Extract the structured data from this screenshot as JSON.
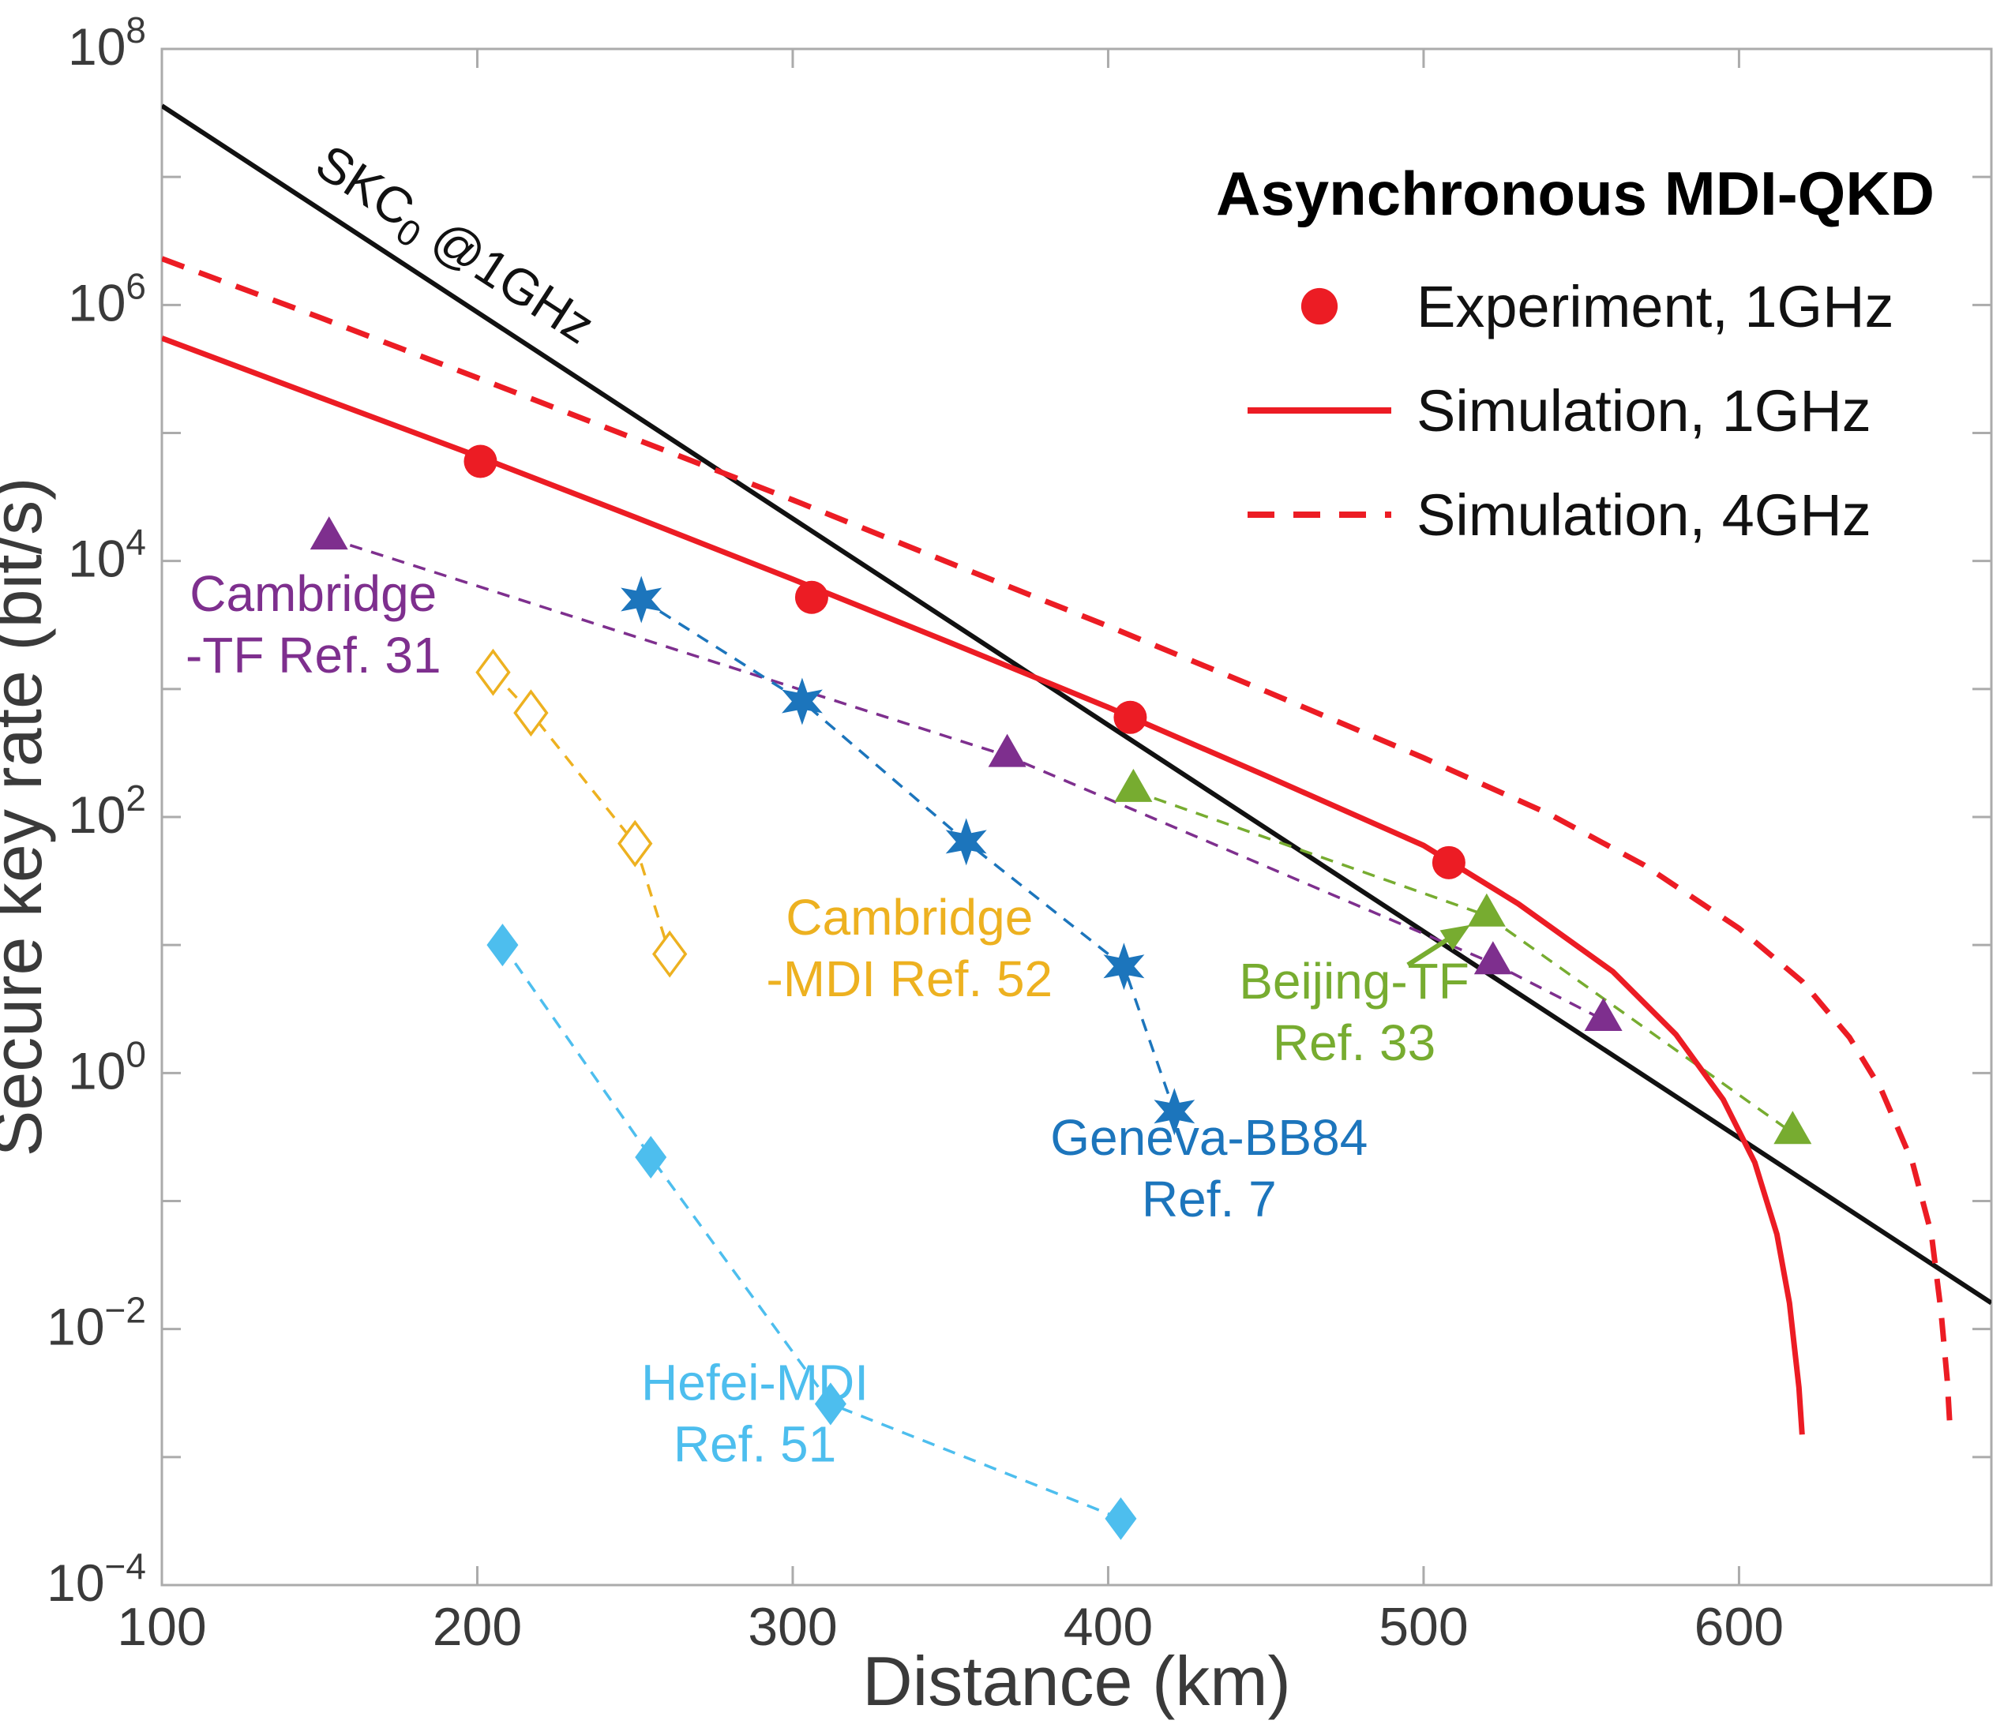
{
  "chart_data": {
    "type": "line",
    "title": "",
    "xlabel": "Distance (km)",
    "ylabel": "Secure key rate (bit/s)",
    "x_axis": {
      "scale": "linear",
      "min": 100,
      "max": 680,
      "ticks": [
        100,
        200,
        300,
        400,
        500,
        600
      ]
    },
    "y_axis": {
      "scale": "log",
      "min": 0.0001,
      "max": 100000000.0,
      "tick_exponents": [
        -4,
        -2,
        0,
        2,
        4,
        6,
        8
      ]
    },
    "grid": false,
    "legend": {
      "position": "top-right-inside",
      "title": "Asynchronous MDI-QKD",
      "items": [
        {
          "label": "Experiment, 1GHz",
          "type": "marker",
          "marker": "circle",
          "color": "#ec1c24"
        },
        {
          "label": "Simulation, 1GHz",
          "type": "line",
          "line": "solid",
          "color": "#ec1c24"
        },
        {
          "label": "Simulation, 4GHz",
          "type": "line",
          "line": "dashed",
          "color": "#ec1c24"
        }
      ]
    },
    "series": [
      {
        "id": "skc0",
        "name": "SKC0 @1GHz",
        "color": "#111111",
        "line": "solid",
        "line_width": 6,
        "marker": null,
        "points": [
          [
            100,
            36000000.0
          ],
          [
            680,
            0.016
          ]
        ]
      },
      {
        "id": "cambridge_tf",
        "name": "Cambridge-TF Ref. 31",
        "color": "#7E2F8E",
        "line": "dashed",
        "line_width": 3.5,
        "marker": "triangle",
        "points": [
          [
            153,
            15000.0
          ],
          [
            368,
            300.0
          ],
          [
            522,
            7.2
          ],
          [
            557,
            2.6
          ]
        ]
      },
      {
        "id": "cambridge_mdi",
        "name": "Cambridge-MDI Ref. 52",
        "color": "#EDB120",
        "line": "dashed",
        "line_width": 3.5,
        "marker": "diamond-open",
        "points": [
          [
            205,
            1350.0
          ],
          [
            217,
            650.0
          ],
          [
            250,
            62.0
          ],
          [
            261,
            8.5
          ]
        ]
      },
      {
        "id": "geneva_bb84",
        "name": "Geneva-BB84 Ref. 7",
        "color": "#1C75BC",
        "line": "dashed",
        "line_width": 3.5,
        "marker": "hexagram",
        "points": [
          [
            252,
            5000.0
          ],
          [
            303,
            800.0
          ],
          [
            355,
            64.0
          ],
          [
            405,
            6.8
          ],
          [
            421,
            0.5
          ]
        ]
      },
      {
        "id": "hefei_mdi",
        "name": "Hefei-MDI Ref. 51",
        "color": "#4DBEEE",
        "line": "dashed",
        "line_width": 3.5,
        "marker": "diamond",
        "points": [
          [
            208,
            10.0
          ],
          [
            255,
            0.22
          ],
          [
            312,
            0.0026
          ],
          [
            404,
            0.00033
          ]
        ]
      },
      {
        "id": "beijing_tf",
        "name": "Beijing-TF Ref. 33",
        "color": "#77AC30",
        "line": "dashed",
        "line_width": 3.5,
        "marker": "triangle",
        "points": [
          [
            408,
            160.0
          ],
          [
            520,
            17.0
          ],
          [
            617,
            0.34
          ]
        ]
      },
      {
        "id": "sim_4ghz",
        "name": "Simulation, 4GHz",
        "color": "#ec1c24",
        "line": "dashed",
        "line_width": 7,
        "marker": null,
        "points": [
          [
            100,
            2300000.0
          ],
          [
            150,
            800000.0
          ],
          [
            200,
            270000.0
          ],
          [
            250,
            90000.0
          ],
          [
            300,
            30000.0
          ],
          [
            350,
            9600.0
          ],
          [
            400,
            3100.0
          ],
          [
            450,
            960.0
          ],
          [
            500,
            290.0
          ],
          [
            540,
            105.0
          ],
          [
            570,
            42.0
          ],
          [
            600,
            13.5
          ],
          [
            620,
            5.2
          ],
          [
            635,
            1.9
          ],
          [
            645,
            0.75
          ],
          [
            655,
            0.2
          ],
          [
            661,
            0.055
          ],
          [
            664,
            0.014
          ],
          [
            666,
            0.004
          ],
          [
            667,
            0.0015
          ]
        ]
      },
      {
        "id": "sim_1ghz",
        "name": "Simulation, 1GHz",
        "color": "#ec1c24",
        "line": "solid",
        "line_width": 7,
        "marker": null,
        "points": [
          [
            100,
            550000.0
          ],
          [
            150,
            190000.0
          ],
          [
            200,
            66000.0
          ],
          [
            250,
            22000.0
          ],
          [
            300,
            7200.0
          ],
          [
            350,
            2300.0
          ],
          [
            400,
            720.0
          ],
          [
            450,
            210.0
          ],
          [
            500,
            60.0
          ],
          [
            530,
            21.0
          ],
          [
            560,
            6.2
          ],
          [
            580,
            2.0
          ],
          [
            595,
            0.62
          ],
          [
            605,
            0.2
          ],
          [
            612,
            0.055
          ],
          [
            616,
            0.016
          ],
          [
            619,
            0.0035
          ],
          [
            620,
            0.0015
          ]
        ]
      },
      {
        "id": "experiment",
        "name": "Experiment, 1GHz",
        "color": "#ec1c24",
        "line": "none",
        "line_width": 0,
        "marker": "circle",
        "points": [
          [
            201,
            60000.0
          ],
          [
            306,
            5200.0
          ],
          [
            407,
            600.0
          ],
          [
            508,
            44.0
          ]
        ]
      }
    ],
    "annotations": [
      {
        "id": "skc0-label",
        "parts": [
          {
            "t": "SKC"
          },
          {
            "t": "0",
            "sub": true
          },
          {
            "t": " @1GHz"
          }
        ],
        "color": "#111111",
        "x": 190,
        "y": 2300000.0,
        "rotation": 33
      },
      {
        "id": "cambridge-tf-label",
        "lines": [
          "Cambridge",
          "-TF Ref. 31"
        ],
        "color": "#7E2F8E",
        "x": 148,
        "y": 3200.0
      },
      {
        "id": "cambridge-mdi-label",
        "lines": [
          "Cambridge",
          "-MDI Ref. 52"
        ],
        "color": "#EDB120",
        "x": 337,
        "y": 9.5
      },
      {
        "id": "geneva-bb84-label",
        "lines": [
          "Geneva-BB84",
          "Ref. 7"
        ],
        "color": "#1C75BC",
        "x": 432,
        "y": 0.18
      },
      {
        "id": "beijing-tf-label",
        "lines": [
          "Beijing-TF",
          "Ref. 33"
        ],
        "color": "#77AC30",
        "x": 478,
        "y": 3.0
      },
      {
        "id": "hefei-mdi-label",
        "lines": [
          "Hefei-MDI",
          "Ref. 51"
        ],
        "color": "#4DBEEE",
        "x": 288,
        "y": 0.0022
      }
    ],
    "arrow": {
      "from": [
        495,
        7.0
      ],
      "to": [
        511,
        12.5
      ],
      "color": "#77AC30"
    }
  },
  "axes_style": {
    "box_color": "#ababab",
    "tick_label_color": "#3a3a3a",
    "axis_label_color": "#3a3a3a",
    "legend_text_color": "#111111",
    "legend_title_color": "#000000"
  }
}
